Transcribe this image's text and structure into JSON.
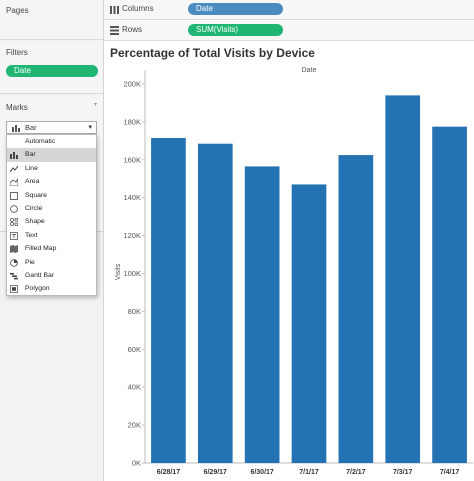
{
  "sidebar": {
    "pages": {
      "title": "Pages"
    },
    "filters": {
      "title": "Filters",
      "pill": "Date"
    },
    "marks": {
      "title": "Marks",
      "selected": "Bar",
      "items": [
        {
          "label": "Automatic",
          "icon": "none"
        },
        {
          "label": "Bar",
          "icon": "bar-icon"
        },
        {
          "label": "Line",
          "icon": "line-icon"
        },
        {
          "label": "Area",
          "icon": "area-icon"
        },
        {
          "label": "Square",
          "icon": "square-icon"
        },
        {
          "label": "Circle",
          "icon": "circle-icon"
        },
        {
          "label": "Shape",
          "icon": "shape-icon"
        },
        {
          "label": "Text",
          "icon": "text-icon"
        },
        {
          "label": "Filled Map",
          "icon": "filled-map-icon"
        },
        {
          "label": "Pie",
          "icon": "pie-icon"
        },
        {
          "label": "Gantt Bar",
          "icon": "gantt-bar-icon"
        },
        {
          "label": "Polygon",
          "icon": "polygon-icon"
        }
      ]
    }
  },
  "shelves": {
    "columns": {
      "label": "Columns",
      "pill": "Date"
    },
    "rows": {
      "label": "Rows",
      "pill": "SUM(Visits)"
    }
  },
  "chart_data": {
    "type": "bar",
    "title": "Percentage of Total Visits by Device",
    "top_header": "Date",
    "ylabel": "Visits",
    "xlabel": "",
    "categories": [
      "6/28/17",
      "6/29/17",
      "6/30/17",
      "7/1/17",
      "7/2/17",
      "7/3/17",
      "7/4/17"
    ],
    "values": [
      171500,
      168500,
      156500,
      147000,
      162500,
      194000,
      177500
    ],
    "ylim": [
      0,
      200000
    ],
    "yticks": [
      {
        "value": 0,
        "label": "0K"
      },
      {
        "value": 20000,
        "label": "20K"
      },
      {
        "value": 40000,
        "label": "40K"
      },
      {
        "value": 60000,
        "label": "60K"
      },
      {
        "value": 80000,
        "label": "80K"
      },
      {
        "value": 100000,
        "label": "100K"
      },
      {
        "value": 120000,
        "label": "120K"
      },
      {
        "value": 140000,
        "label": "140K"
      },
      {
        "value": 160000,
        "label": "160K"
      },
      {
        "value": 180000,
        "label": "180K"
      },
      {
        "value": 200000,
        "label": "200K"
      }
    ],
    "bar_color": "#2272b4",
    "grid": false
  }
}
